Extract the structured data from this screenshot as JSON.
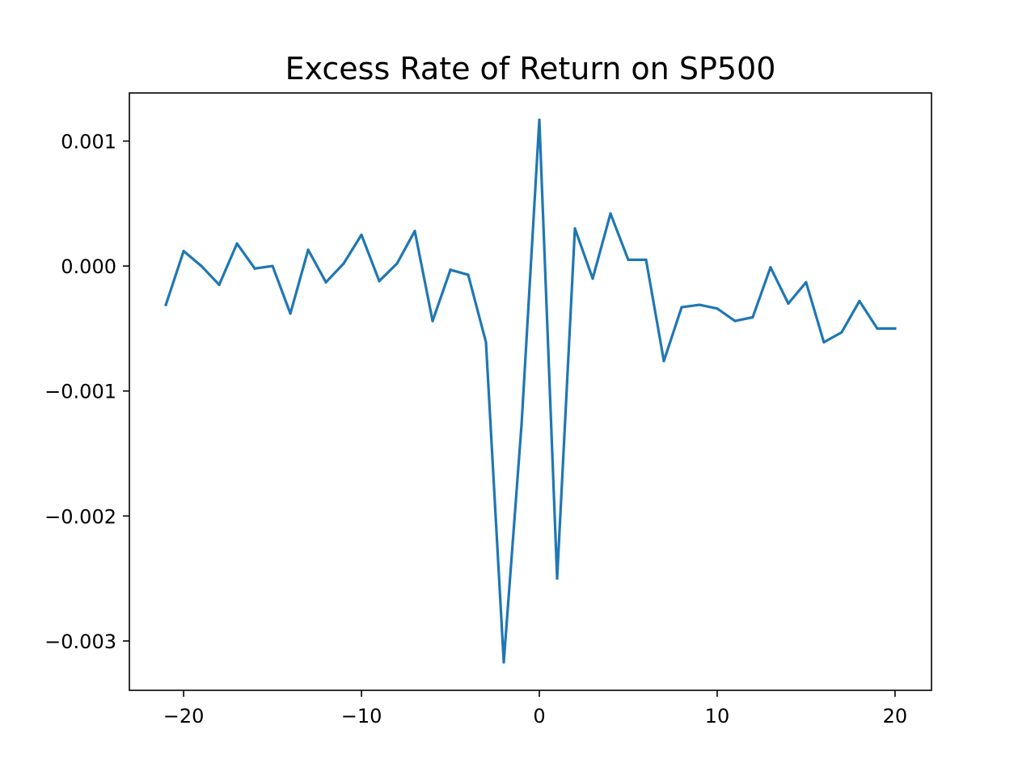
{
  "chart_data": {
    "type": "line",
    "title": "Excess Rate of Return on SP500",
    "xlabel": "",
    "ylabel": "",
    "xlim": [
      -23.05,
      22.05
    ],
    "ylim": [
      -0.003395,
      0.001385
    ],
    "x_ticks": [
      -20,
      -10,
      0,
      10,
      20
    ],
    "x_tick_labels": [
      "−20",
      "−10",
      "0",
      "10",
      "20"
    ],
    "y_ticks": [
      0.001,
      0.0,
      -0.001,
      -0.002,
      -0.003
    ],
    "y_tick_labels": [
      "0.001",
      "0.000",
      "−0.001",
      "−0.002",
      "−0.003"
    ],
    "grid": false,
    "series": [
      {
        "color": "#1f77b4",
        "x": [
          -21,
          -20,
          -19,
          -18,
          -17,
          -16,
          -15,
          -14,
          -13,
          -12,
          -11,
          -10,
          -9,
          -8,
          -7,
          -6,
          -5,
          -4,
          -3,
          -2,
          -1,
          0,
          1,
          2,
          3,
          4,
          5,
          6,
          7,
          8,
          9,
          10,
          11,
          12,
          13,
          14,
          15,
          16,
          17,
          18,
          19,
          20
        ],
        "y": [
          -0.00031,
          0.00012,
          0.0,
          -0.00015,
          0.00018,
          -2e-05,
          0.0,
          -0.00038,
          0.00013,
          -0.00013,
          2e-05,
          0.00025,
          -0.00012,
          2e-05,
          0.00028,
          -0.00044,
          -3e-05,
          -7e-05,
          -0.00061,
          -0.00317,
          -0.00127,
          0.00117,
          -0.0025,
          0.0003,
          -0.0001,
          0.00042,
          5e-05,
          5e-05,
          -0.00076,
          -0.00033,
          -0.00031,
          -0.00034,
          -0.00044,
          -0.00041,
          -1e-05,
          -0.0003,
          -0.00013,
          -0.00061,
          -0.00053,
          -0.00028,
          -0.0005,
          -0.0005
        ]
      }
    ]
  }
}
